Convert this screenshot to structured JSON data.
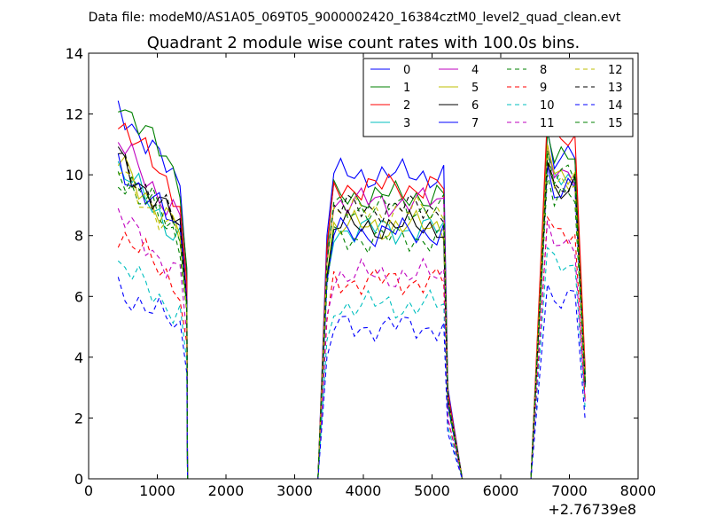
{
  "figure": {
    "suptitle": "Data file: modeM0/AS1A05_069T05_9000002420_16384cztM0_level2_quad_clean.evt"
  },
  "chart_data": {
    "type": "line",
    "title": "Quadrant 2 module wise count rates with 100.0s bins.",
    "xlabel": "",
    "ylabel": "",
    "x_offset_label": "+2.76739e8",
    "xlim": [
      0,
      8000
    ],
    "ylim": [
      0,
      14
    ],
    "xticks": [
      0,
      1000,
      2000,
      3000,
      4000,
      5000,
      6000,
      7000,
      8000
    ],
    "xtick_labels": [
      "0",
      "1000",
      "2000",
      "3000",
      "4000",
      "5000",
      "6000",
      "7000",
      "8000"
    ],
    "yticks": [
      0,
      2,
      4,
      6,
      8,
      10,
      12,
      14
    ],
    "ytick_labels": [
      "0",
      "2",
      "4",
      "6",
      "8",
      "10",
      "12",
      "14"
    ],
    "grid": false,
    "legend_position": "top-right",
    "legend_columns": 4,
    "segments": [
      {
        "start": 430,
        "end": 1330
      },
      {
        "start": 3470,
        "end": 5220
      },
      {
        "start": 6680,
        "end": 7130
      }
    ],
    "zero_time": [
      1440,
      3400,
      5440,
      6530
    ],
    "drop_edges": [
      1430,
      5230,
      7230
    ],
    "series": [
      {
        "name": "0",
        "color": "#0000ff",
        "dashed": false,
        "levels": [
          12.3,
          10.0,
          11.5
        ]
      },
      {
        "name": "1",
        "color": "#008000",
        "dashed": false,
        "levels": [
          12.6,
          9.3,
          11.4
        ]
      },
      {
        "name": "2",
        "color": "#ff0000",
        "dashed": false,
        "levels": [
          11.8,
          9.6,
          12.0
        ]
      },
      {
        "name": "3",
        "color": "#00bfbf",
        "dashed": false,
        "levels": [
          10.2,
          8.2,
          10.7
        ]
      },
      {
        "name": "4",
        "color": "#bf00bf",
        "dashed": false,
        "levels": [
          11.0,
          9.1,
          11.0
        ]
      },
      {
        "name": "5",
        "color": "#bfbf00",
        "dashed": false,
        "levels": [
          10.4,
          8.3,
          11.0
        ]
      },
      {
        "name": "6",
        "color": "#000000",
        "dashed": false,
        "levels": [
          10.6,
          8.3,
          10.4
        ]
      },
      {
        "name": "7",
        "color": "#0000ff",
        "dashed": false,
        "levels": [
          10.4,
          8.1,
          10.3
        ]
      },
      {
        "name": "8",
        "color": "#008000",
        "dashed": true,
        "levels": [
          10.0,
          7.9,
          10.0
        ]
      },
      {
        "name": "9",
        "color": "#ff0000",
        "dashed": true,
        "levels": [
          8.1,
          6.5,
          8.6
        ]
      },
      {
        "name": "10",
        "color": "#00bfbf",
        "dashed": true,
        "levels": [
          7.0,
          5.7,
          7.6
        ]
      },
      {
        "name": "11",
        "color": "#bf00bf",
        "dashed": true,
        "levels": [
          8.6,
          6.7,
          8.5
        ]
      },
      {
        "name": "12",
        "color": "#bfbf00",
        "dashed": true,
        "levels": [
          10.1,
          8.8,
          10.7
        ]
      },
      {
        "name": "13",
        "color": "#000000",
        "dashed": true,
        "levels": [
          10.6,
          8.9,
          10.5
        ]
      },
      {
        "name": "14",
        "color": "#0000ff",
        "dashed": true,
        "levels": [
          6.3,
          5.0,
          6.4
        ]
      },
      {
        "name": "15",
        "color": "#008000",
        "dashed": true,
        "levels": [
          10.3,
          8.9,
          10.8
        ]
      }
    ]
  }
}
